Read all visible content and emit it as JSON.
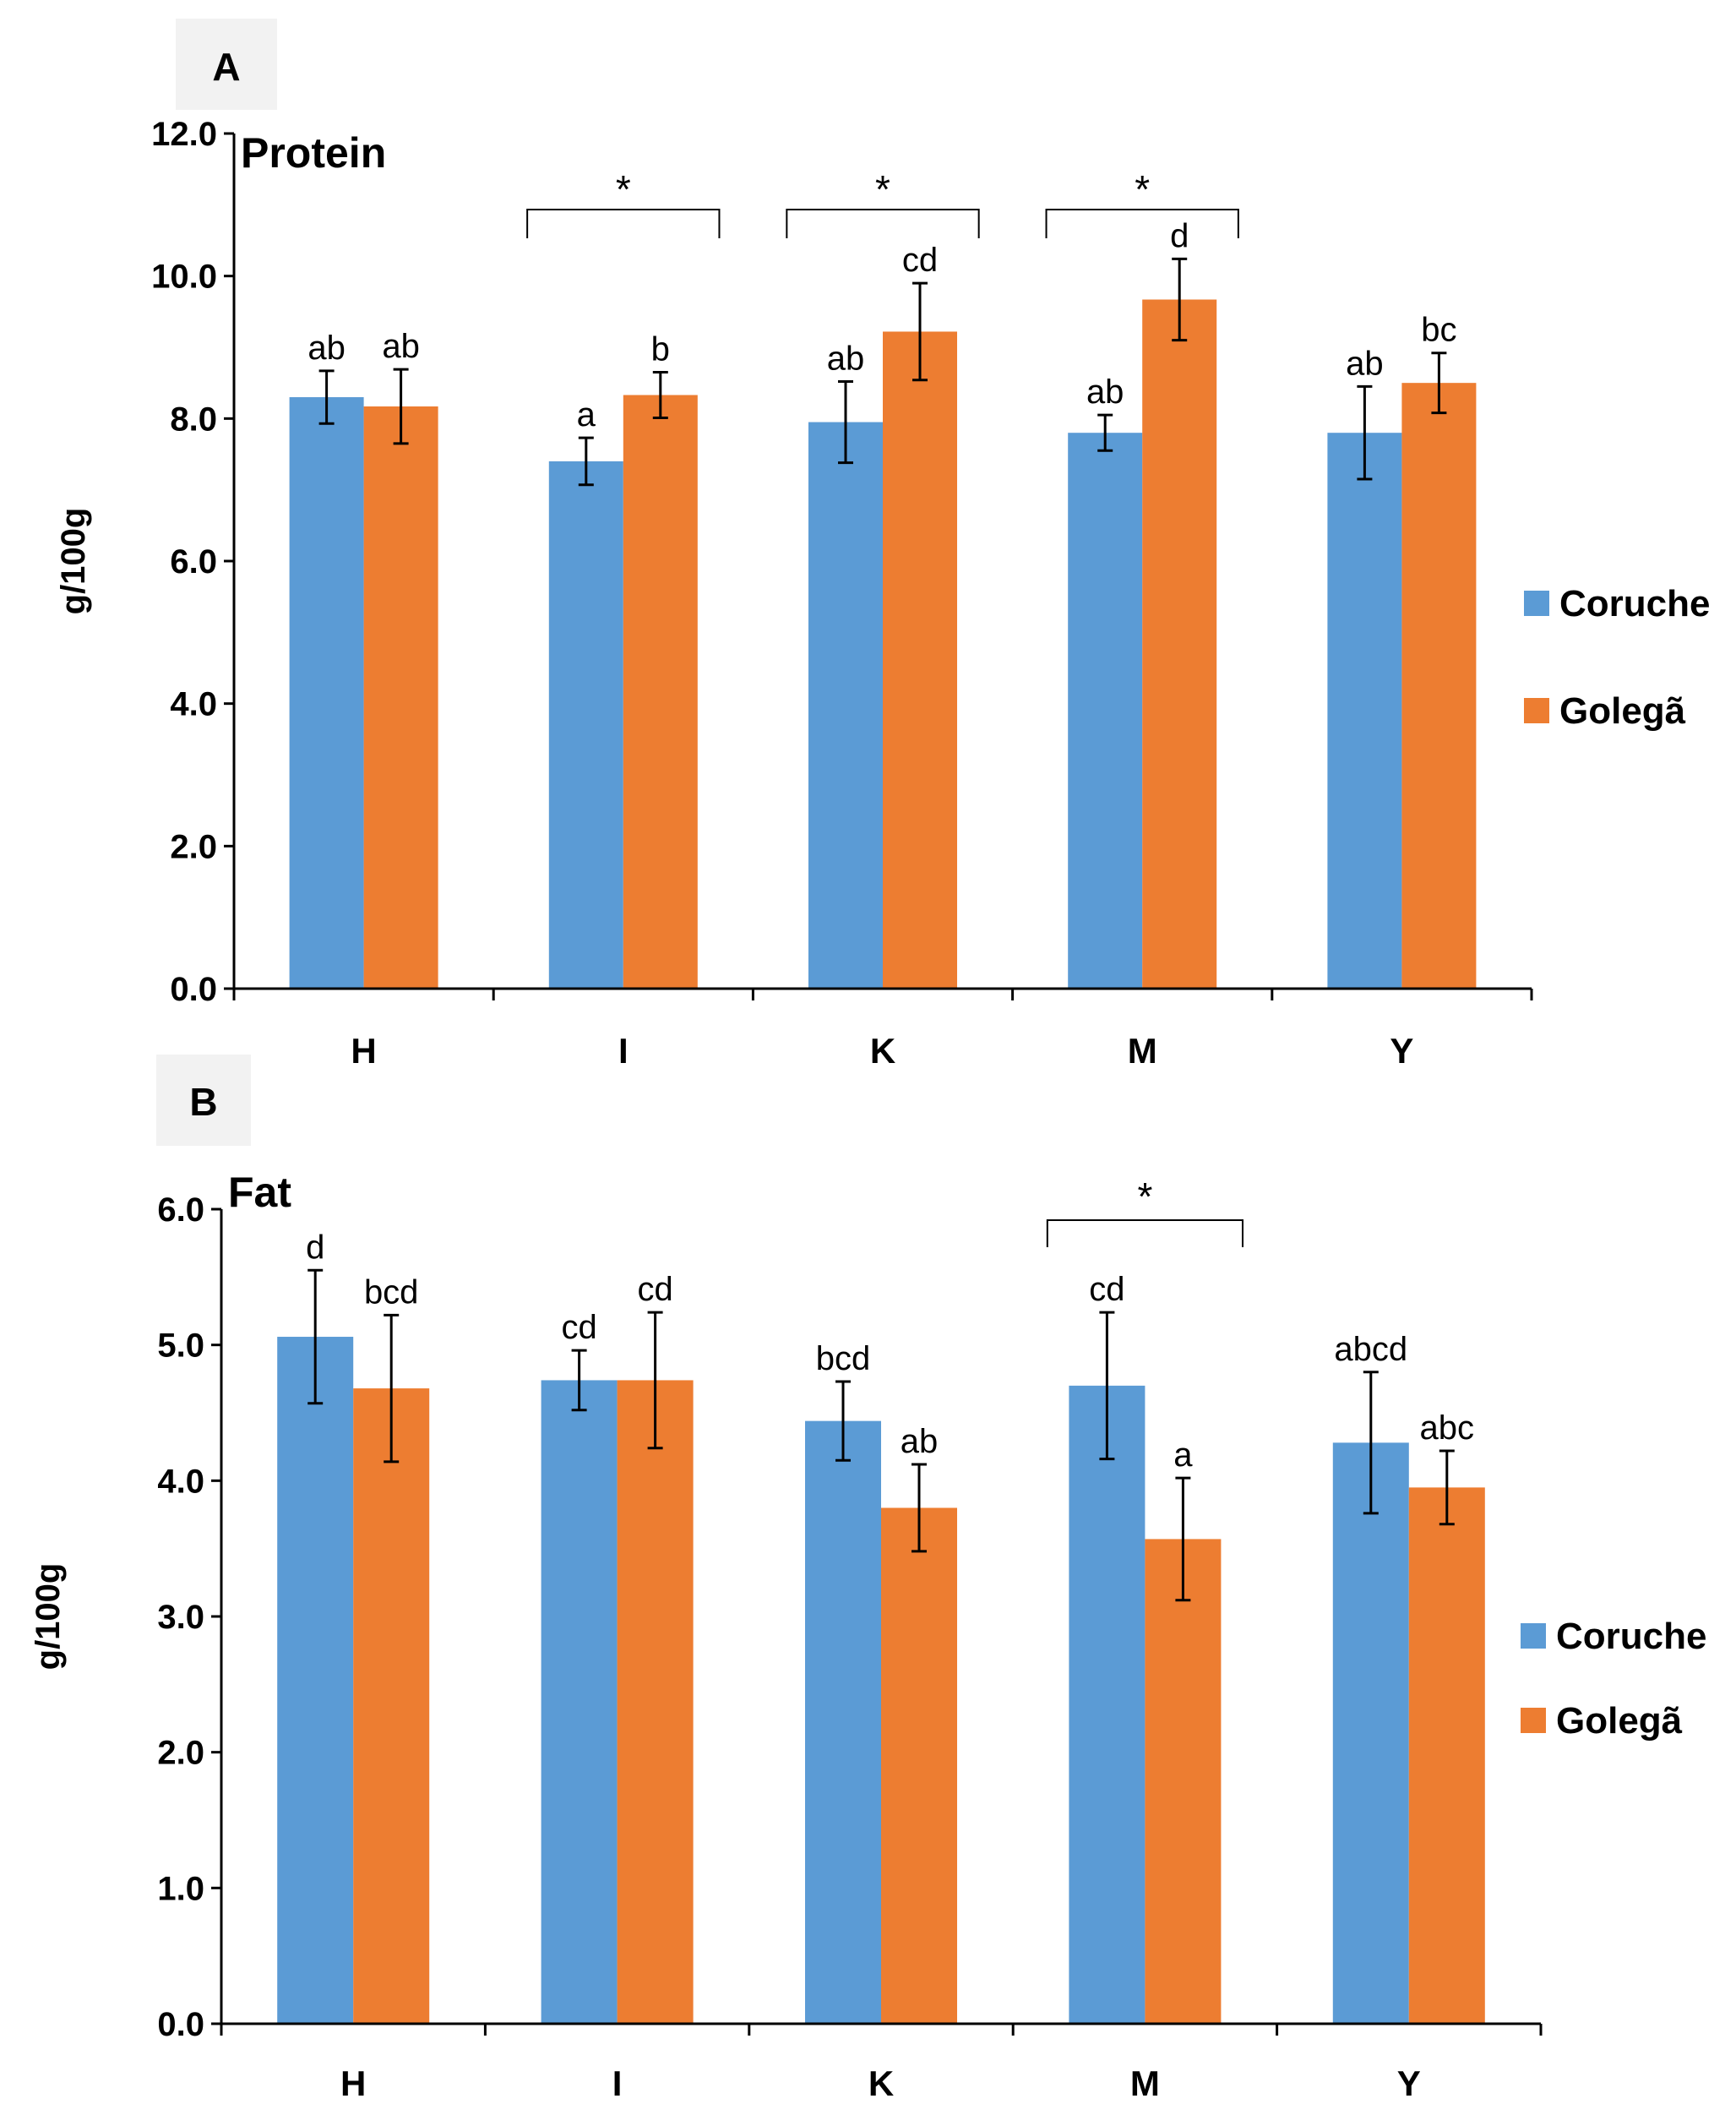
{
  "colors": {
    "Coruche": "#5b9bd5",
    "Golegã": "#ed7d31"
  },
  "chart_data": [
    {
      "panel": "A",
      "type": "bar",
      "title": "Protein",
      "ylabel": "g/100g",
      "xlabel": "",
      "ylim": [
        0,
        12
      ],
      "yticks": [
        "0.0",
        "2.0",
        "4.0",
        "6.0",
        "8.0",
        "10.0",
        "12.0"
      ],
      "categories": [
        "H",
        "I",
        "K",
        "M",
        "Y"
      ],
      "legend": [
        "Coruche",
        "Golegã"
      ],
      "legend_position": "right",
      "series": [
        {
          "name": "Coruche",
          "values": [
            8.3,
            7.4,
            7.95,
            7.8,
            7.8
          ],
          "errors": [
            0.37,
            0.33,
            0.57,
            0.25,
            0.65
          ],
          "labels": [
            "ab",
            "a",
            "ab",
            "ab",
            "ab"
          ]
        },
        {
          "name": "Golegã",
          "values": [
            8.17,
            8.33,
            9.22,
            9.67,
            8.5
          ],
          "errors": [
            0.52,
            0.32,
            0.68,
            0.57,
            0.42
          ],
          "labels": [
            "ab",
            "b",
            "cd",
            "d",
            "bc"
          ]
        }
      ],
      "significance": [
        {
          "category": "I",
          "mark": "*"
        },
        {
          "category": "K",
          "mark": "*"
        },
        {
          "category": "M",
          "mark": "*"
        }
      ]
    },
    {
      "panel": "B",
      "type": "bar",
      "title": "Fat",
      "ylabel": "g/100g",
      "xlabel": "",
      "ylim": [
        0,
        6
      ],
      "yticks": [
        "0.0",
        "1.0",
        "2.0",
        "3.0",
        "4.0",
        "5.0",
        "6.0"
      ],
      "categories": [
        "H",
        "I",
        "K",
        "M",
        "Y"
      ],
      "legend": [
        "Coruche",
        "Golegã"
      ],
      "legend_position": "right",
      "series": [
        {
          "name": "Coruche",
          "values": [
            5.06,
            4.74,
            4.44,
            4.7,
            4.28
          ],
          "errors": [
            0.49,
            0.22,
            0.29,
            0.54,
            0.52
          ],
          "labels": [
            "d",
            "cd",
            "bcd",
            "cd",
            "abcd"
          ]
        },
        {
          "name": "Golegã",
          "values": [
            4.68,
            4.74,
            3.8,
            3.57,
            3.95
          ],
          "errors": [
            0.54,
            0.5,
            0.32,
            0.45,
            0.27
          ],
          "labels": [
            "bcd",
            "cd",
            "ab",
            "a",
            "abc"
          ]
        }
      ],
      "significance": [
        {
          "category": "M",
          "mark": "*"
        }
      ]
    }
  ]
}
